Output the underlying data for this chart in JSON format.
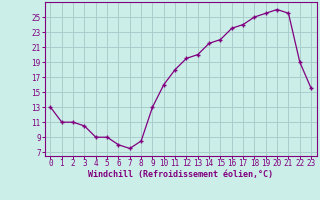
{
  "x": [
    0,
    1,
    2,
    3,
    4,
    5,
    6,
    7,
    8,
    9,
    10,
    11,
    12,
    13,
    14,
    15,
    16,
    17,
    18,
    19,
    20,
    21,
    22,
    23
  ],
  "y": [
    13,
    11,
    11,
    10.5,
    9,
    9,
    8,
    7.5,
    8.5,
    13,
    16,
    18,
    19.5,
    20,
    21.5,
    22,
    23.5,
    24,
    25,
    25.5,
    26,
    25.5,
    19,
    15.5
  ],
  "line_color": "#800080",
  "marker_color": "#800080",
  "bg_color": "#cceee8",
  "grid_color": "#aacccc",
  "xlabel": "Windchill (Refroidissement éolien,°C)",
  "xlabel_color": "#800080",
  "tick_color": "#800080",
  "yticks": [
    7,
    9,
    11,
    13,
    15,
    17,
    19,
    21,
    23,
    25
  ],
  "ylim": [
    6.5,
    27
  ],
  "xlim": [
    -0.5,
    23.5
  ],
  "xtick_labels": [
    "0",
    "1",
    "2",
    "3",
    "4",
    "5",
    "6",
    "7",
    "8",
    "9",
    "10",
    "11",
    "12",
    "13",
    "14",
    "15",
    "16",
    "17",
    "18",
    "19",
    "20",
    "21",
    "22",
    "23"
  ],
  "font_family": "monospace",
  "tick_fontsize": 5.5,
  "xlabel_fontsize": 6.0
}
